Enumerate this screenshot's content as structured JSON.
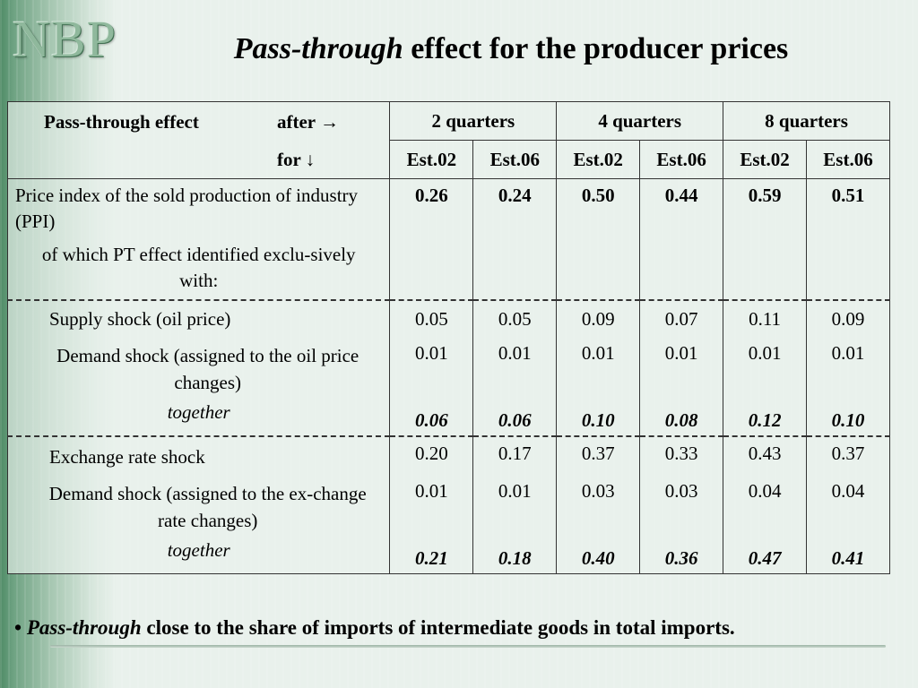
{
  "logo": "NBP",
  "title": {
    "italic": "Pass-through",
    "rest": " effect for the producer prices"
  },
  "header": {
    "pt_effect": "Pass-through effect",
    "after": "after →",
    "for": "for ↓",
    "horizons": [
      "2 quarters",
      "4 quarters",
      "8 quarters"
    ],
    "estimates": [
      "Est.02",
      "Est.06",
      "Est.02",
      "Est.06",
      "Est.02",
      "Est.06"
    ]
  },
  "ppi": {
    "label": "Price index of the sold production of industry (PPI)",
    "sublabel": "of which PT effect identified exclu-sively with:",
    "values": [
      "0.26",
      "0.24",
      "0.50",
      "0.44",
      "0.59",
      "0.51"
    ]
  },
  "oil_block": {
    "rows": [
      {
        "label": "Supply shock (oil price)",
        "values": [
          "0.05",
          "0.05",
          "0.09",
          "0.07",
          "0.11",
          "0.09"
        ]
      },
      {
        "label": "Demand shock (assigned to the oil price changes)",
        "values": [
          "0.01",
          "0.01",
          "0.01",
          "0.01",
          "0.01",
          "0.01"
        ]
      }
    ],
    "together_label": "together",
    "together_values": [
      "0.06",
      "0.06",
      "0.10",
      "0.08",
      "0.12",
      "0.10"
    ]
  },
  "fx_block": {
    "rows": [
      {
        "label": "Exchange rate shock",
        "values": [
          "0.20",
          "0.17",
          "0.37",
          "0.33",
          "0.43",
          "0.37"
        ]
      },
      {
        "label": "Demand shock (assigned to the ex-change rate changes)",
        "values": [
          "0.01",
          "0.01",
          "0.03",
          "0.03",
          "0.04",
          "0.04"
        ]
      }
    ],
    "together_label": "together",
    "together_values": [
      "0.21",
      "0.18",
      "0.40",
      "0.36",
      "0.47",
      "0.41"
    ]
  },
  "bullet": {
    "symbol": "•",
    "italic": "Pass-through",
    "rest": " close to the share of imports of intermediate goods in total imports."
  }
}
